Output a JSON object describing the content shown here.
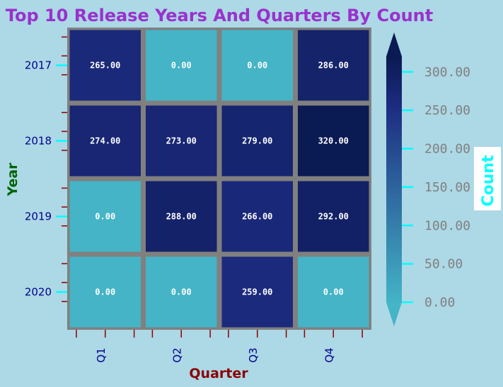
{
  "chart_data": {
    "type": "heatmap",
    "title": "Top 10 Release Years And Quarters By Count",
    "xlabel": "Quarter",
    "ylabel": "Year",
    "x_categories": [
      "Q1",
      "Q2",
      "Q3",
      "Q4"
    ],
    "y_categories": [
      "2017",
      "2018",
      "2019",
      "2020"
    ],
    "values": [
      [
        265,
        0,
        0,
        286
      ],
      [
        274,
        273,
        279,
        320
      ],
      [
        0,
        288,
        266,
        292
      ],
      [
        0,
        0,
        259,
        0
      ]
    ],
    "cell_labels": [
      [
        "265.00",
        "0.00",
        "0.00",
        "286.00"
      ],
      [
        "274.00",
        "273.00",
        "279.00",
        "320.00"
      ],
      [
        "0.00",
        "288.00",
        "266.00",
        "292.00"
      ],
      [
        "0.00",
        "0.00",
        "259.00",
        "0.00"
      ]
    ],
    "colorbar": {
      "label": "Count",
      "range": [
        0,
        320
      ],
      "ticks": [
        0,
        50,
        100,
        150,
        200,
        250,
        300
      ],
      "tick_labels": [
        "0.00",
        "50.00",
        "100.00",
        "150.00",
        "200.00",
        "250.00",
        "300.00"
      ],
      "extend": "both"
    },
    "colors": {
      "low": "#44b4c6",
      "mid": "#1d2b80",
      "high": "#0a1a52",
      "grid_lines": "#808080",
      "background": "#add8e6"
    }
  }
}
